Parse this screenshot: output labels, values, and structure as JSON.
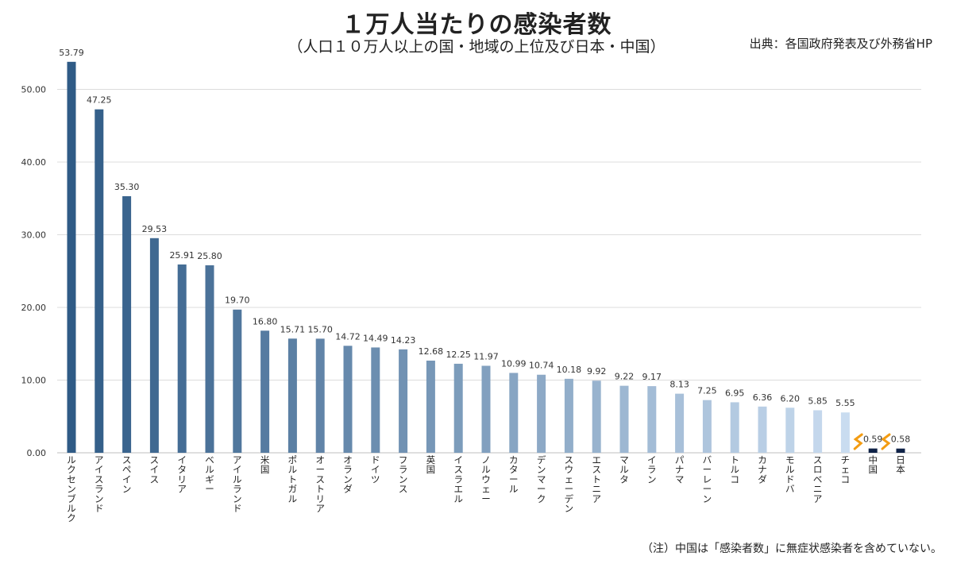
{
  "header": {
    "title": "１万人当たりの感染者数",
    "subtitle": "（人口１０万人以上の国・地域の上位及び日本・中国）",
    "source": "出典：各国政府発表及び外務省HP"
  },
  "footer": {
    "note": "（注）中国は「感染者数」に無症状感染者を含めていない。"
  },
  "colors": {
    "bar_start": "#2f5b86",
    "bar_end": "#c9dcf0",
    "highlight": "#0f2247",
    "break_mark": "#f39c12"
  },
  "chart_data": {
    "type": "bar",
    "title": "１万人当たりの感染者数",
    "xlabel": "",
    "ylabel": "",
    "ylim": [
      0,
      55
    ],
    "yticks": [
      0,
      10,
      20,
      30,
      40,
      50
    ],
    "ytick_labels": [
      "0.00",
      "10.00",
      "20.00",
      "30.00",
      "40.00",
      "50.00"
    ],
    "grid": true,
    "categories": [
      "ルクセンブルク",
      "アイスランド",
      "スペイン",
      "スイス",
      "イタリア",
      "ベルギー",
      "アイルランド",
      "米国",
      "ポルトガル",
      "オーストリア",
      "オランダ",
      "ドイツ",
      "フランス",
      "英国",
      "イスラエル",
      "ノルウェー",
      "カタール",
      "デンマーク",
      "スウェーデン",
      "エストニア",
      "マルタ",
      "イラン",
      "パナマ",
      "バーレーン",
      "トルコ",
      "カナダ",
      "モルドバ",
      "スロベニア",
      "チェコ",
      "中国",
      "日本"
    ],
    "values": [
      53.79,
      47.25,
      35.3,
      29.53,
      25.91,
      25.8,
      19.7,
      16.8,
      15.71,
      15.7,
      14.72,
      14.49,
      14.23,
      12.68,
      12.25,
      11.97,
      10.99,
      10.74,
      10.18,
      9.92,
      9.22,
      9.17,
      8.13,
      7.25,
      6.95,
      6.36,
      6.2,
      5.85,
      5.55,
      0.59,
      0.58
    ],
    "value_labels": [
      "53.79",
      "47.25",
      "35.30",
      "29.53",
      "25.91",
      "25.80",
      "19.70",
      "16.80",
      "15.71",
      "15.70",
      "14.72",
      "14.49",
      "14.23",
      "12.68",
      "12.25",
      "11.97",
      "10.99",
      "10.74",
      "10.18",
      "9.92",
      "9.22",
      "9.17",
      "8.13",
      "7.25",
      "6.95",
      "6.36",
      "6.20",
      "5.85",
      "5.55",
      "0.59",
      "0.58"
    ],
    "highlighted": [
      "中国",
      "日本"
    ],
    "axis_breaks_before": [
      "中国",
      "日本"
    ]
  }
}
